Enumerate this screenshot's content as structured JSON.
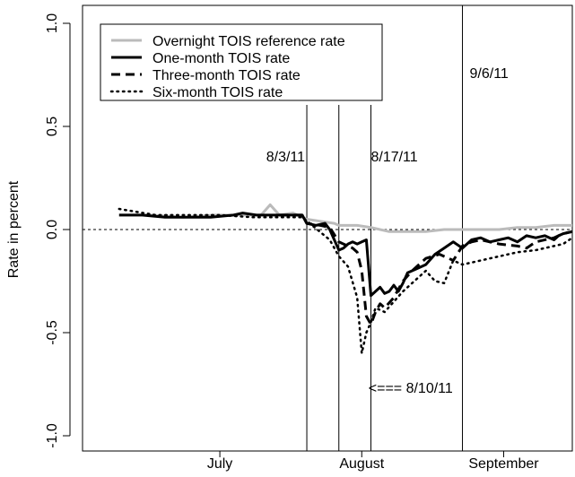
{
  "chart_data": {
    "type": "line",
    "title": "",
    "xlabel": "",
    "ylabel": "Rate in percent",
    "ylim": [
      -1.0,
      1.0
    ],
    "yticks": [
      -1.0,
      -0.5,
      0.0,
      0.5,
      1.0
    ],
    "xlim": [
      "2011-06-15",
      "2011-09-30"
    ],
    "xtick_labels": [
      {
        "label": "July",
        "date": "2011-07-15"
      },
      {
        "label": "August",
        "date": "2011-08-15"
      },
      {
        "label": "September",
        "date": "2011-09-15"
      }
    ],
    "grid": false,
    "legend_position": "top-left",
    "reference_line": {
      "y": 0.0,
      "style": "dotted"
    },
    "event_lines": [
      {
        "date": "2011-08-03",
        "label": "8/3/11"
      },
      {
        "date": "2011-08-10",
        "label": "<=== 8/10/11"
      },
      {
        "date": "2011-08-17",
        "label": "8/17/11"
      },
      {
        "date": "2011-09-06",
        "label": "9/6/11"
      }
    ],
    "series": [
      {
        "name": "Overnight TOIS reference rate",
        "color": "#bbbbbb",
        "style": "solid-thick",
        "x": [
          "2011-06-23",
          "2011-06-30",
          "2011-07-07",
          "2011-07-14",
          "2011-07-21",
          "2011-07-24",
          "2011-07-26",
          "2011-07-28",
          "2011-07-31",
          "2011-08-03",
          "2011-08-06",
          "2011-08-09",
          "2011-08-10",
          "2011-08-14",
          "2011-08-17",
          "2011-08-21",
          "2011-08-25",
          "2011-08-29",
          "2011-09-02",
          "2011-09-06",
          "2011-09-10",
          "2011-09-14",
          "2011-09-18",
          "2011-09-22",
          "2011-09-26",
          "2011-09-30"
        ],
        "y": [
          0.07,
          0.07,
          0.06,
          0.07,
          0.07,
          0.07,
          0.12,
          0.07,
          0.08,
          0.05,
          0.04,
          0.03,
          0.02,
          0.02,
          0.01,
          -0.01,
          -0.01,
          -0.01,
          0.0,
          0.0,
          0.0,
          0.0,
          0.01,
          0.01,
          0.02,
          0.02
        ]
      },
      {
        "name": "One-month TOIS rate",
        "color": "#000000",
        "style": "solid",
        "x": [
          "2011-06-23",
          "2011-06-28",
          "2011-07-03",
          "2011-07-08",
          "2011-07-13",
          "2011-07-18",
          "2011-07-20",
          "2011-07-23",
          "2011-07-28",
          "2011-08-02",
          "2011-08-03",
          "2011-08-05",
          "2011-08-07",
          "2011-08-08",
          "2011-08-10",
          "2011-08-11",
          "2011-08-12",
          "2011-08-13",
          "2011-08-14",
          "2011-08-15",
          "2011-08-16",
          "2011-08-17",
          "2011-08-18",
          "2011-08-19",
          "2011-08-20",
          "2011-08-21",
          "2011-08-22",
          "2011-08-23",
          "2011-08-24",
          "2011-08-25",
          "2011-08-27",
          "2011-08-29",
          "2011-08-31",
          "2011-09-02",
          "2011-09-04",
          "2011-09-06",
          "2011-09-08",
          "2011-09-10",
          "2011-09-12",
          "2011-09-14",
          "2011-09-16",
          "2011-09-18",
          "2011-09-20",
          "2011-09-22",
          "2011-09-24",
          "2011-09-26",
          "2011-09-27",
          "2011-09-28",
          "2011-09-30"
        ],
        "y": [
          0.07,
          0.07,
          0.06,
          0.06,
          0.06,
          0.07,
          0.08,
          0.07,
          0.07,
          0.07,
          0.03,
          0.02,
          0.03,
          0.0,
          -0.1,
          -0.09,
          -0.07,
          -0.06,
          -0.07,
          -0.06,
          -0.05,
          -0.32,
          -0.3,
          -0.28,
          -0.31,
          -0.3,
          -0.27,
          -0.3,
          -0.26,
          -0.21,
          -0.19,
          -0.17,
          -0.12,
          -0.09,
          -0.06,
          -0.09,
          -0.05,
          -0.04,
          -0.06,
          -0.05,
          -0.04,
          -0.06,
          -0.03,
          -0.04,
          -0.03,
          -0.05,
          -0.03,
          -0.02,
          -0.01
        ]
      },
      {
        "name": "Three-month TOIS rate",
        "color": "#000000",
        "style": "dashed",
        "x": [
          "2011-07-28",
          "2011-08-02",
          "2011-08-03",
          "2011-08-06",
          "2011-08-08",
          "2011-08-10",
          "2011-08-11",
          "2011-08-12",
          "2011-08-13",
          "2011-08-14",
          "2011-08-15",
          "2011-08-16",
          "2011-08-17",
          "2011-08-18",
          "2011-08-19",
          "2011-08-20",
          "2011-08-22",
          "2011-08-24",
          "2011-08-26",
          "2011-08-29",
          "2011-09-01",
          "2011-09-04",
          "2011-09-06",
          "2011-09-08",
          "2011-09-10",
          "2011-09-14",
          "2011-09-18",
          "2011-09-20",
          "2011-09-22",
          "2011-09-26",
          "2011-09-28",
          "2011-09-30"
        ],
        "y": [
          0.07,
          0.07,
          0.03,
          0.02,
          0.01,
          -0.06,
          -0.07,
          -0.08,
          -0.09,
          -0.11,
          -0.2,
          -0.42,
          -0.46,
          -0.4,
          -0.36,
          -0.38,
          -0.33,
          -0.25,
          -0.2,
          -0.14,
          -0.12,
          -0.15,
          -0.08,
          -0.06,
          -0.05,
          -0.07,
          -0.08,
          -0.09,
          -0.06,
          -0.04,
          -0.02,
          -0.01
        ]
      },
      {
        "name": "Six-month TOIS rate",
        "color": "#000000",
        "style": "dotted",
        "x": [
          "2011-06-23",
          "2011-07-01",
          "2011-07-08",
          "2011-07-15",
          "2011-07-22",
          "2011-07-28",
          "2011-08-02",
          "2011-08-08",
          "2011-08-10",
          "2011-08-12",
          "2011-08-14",
          "2011-08-15",
          "2011-08-16",
          "2011-08-17",
          "2011-08-18",
          "2011-08-20",
          "2011-08-22",
          "2011-08-24",
          "2011-08-26",
          "2011-08-29",
          "2011-08-31",
          "2011-09-02",
          "2011-09-04",
          "2011-09-06",
          "2011-09-10",
          "2011-09-14",
          "2011-09-18",
          "2011-09-22",
          "2011-09-26",
          "2011-09-28",
          "2011-09-30"
        ],
        "y": [
          0.1,
          0.07,
          0.07,
          0.07,
          0.06,
          0.06,
          0.06,
          -0.05,
          -0.13,
          -0.18,
          -0.33,
          -0.6,
          -0.5,
          -0.45,
          -0.38,
          -0.4,
          -0.35,
          -0.3,
          -0.26,
          -0.2,
          -0.25,
          -0.26,
          -0.15,
          -0.17,
          -0.15,
          -0.13,
          -0.11,
          -0.1,
          -0.08,
          -0.07,
          -0.04
        ]
      }
    ]
  }
}
